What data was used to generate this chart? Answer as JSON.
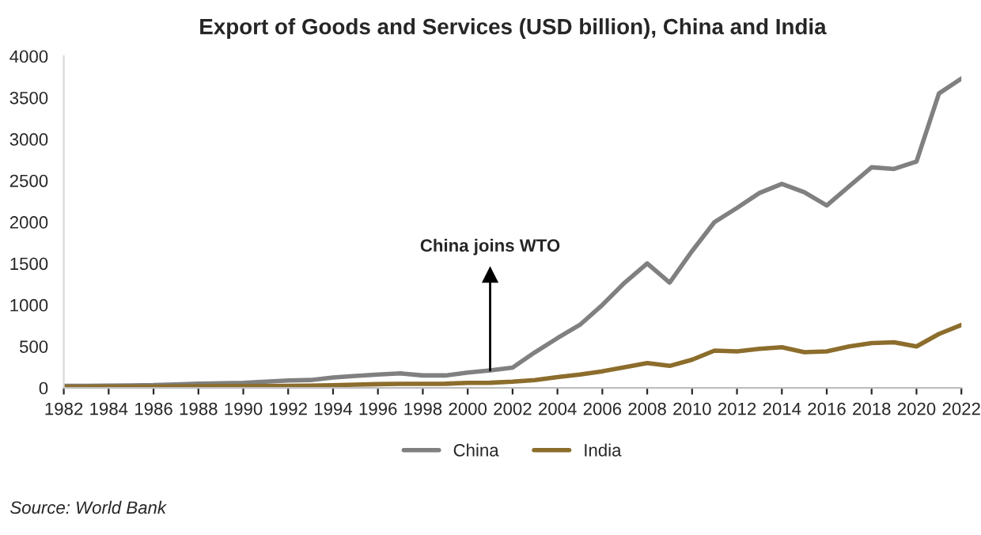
{
  "chart_data": {
    "type": "line",
    "title": "Export of Goods and Services (USD billion), China and India",
    "x": [
      1982,
      1983,
      1984,
      1985,
      1986,
      1987,
      1988,
      1989,
      1990,
      1991,
      1992,
      1993,
      1994,
      1995,
      1996,
      1997,
      1998,
      1999,
      2000,
      2001,
      2002,
      2003,
      2004,
      2005,
      2006,
      2007,
      2008,
      2009,
      2010,
      2011,
      2012,
      2013,
      2014,
      2015,
      2016,
      2017,
      2018,
      2019,
      2020,
      2021,
      2022
    ],
    "series": [
      {
        "name": "China",
        "color": "#808080",
        "values": [
          25,
          25,
          28,
          30,
          33,
          42,
          50,
          55,
          60,
          75,
          90,
          95,
          125,
          145,
          160,
          175,
          150,
          150,
          185,
          210,
          245,
          430,
          600,
          760,
          1000,
          1270,
          1500,
          1270,
          1650,
          2000,
          2170,
          2350,
          2460,
          2360,
          2200,
          2430,
          2660,
          2640,
          2730,
          3550,
          3730
        ]
      },
      {
        "name": "India",
        "color": "#8c6d2c",
        "values": [
          12,
          13,
          14,
          14,
          15,
          17,
          20,
          22,
          23,
          23,
          25,
          28,
          32,
          40,
          45,
          48,
          48,
          50,
          60,
          62,
          75,
          95,
          130,
          160,
          200,
          250,
          300,
          265,
          340,
          450,
          440,
          470,
          490,
          430,
          440,
          500,
          540,
          550,
          500,
          650,
          760
        ]
      }
    ],
    "xlim": [
      1982,
      2022
    ],
    "xticks": [
      1982,
      1984,
      1986,
      1988,
      1990,
      1992,
      1994,
      1996,
      1998,
      2000,
      2002,
      2004,
      2006,
      2008,
      2010,
      2012,
      2014,
      2016,
      2018,
      2020,
      2022
    ],
    "ylim": [
      0,
      4000
    ],
    "yticks": [
      0,
      500,
      1000,
      1500,
      2000,
      2500,
      3000,
      3500,
      4000
    ],
    "grid": false,
    "legend": "bottom",
    "line_style": "solid",
    "marker": "none",
    "ref_lines": [
      {
        "axis": "x",
        "value": 2001,
        "label": "China joins WTO",
        "color": "#000000"
      }
    ],
    "annotations": [
      "Source: World Bank"
    ]
  }
}
